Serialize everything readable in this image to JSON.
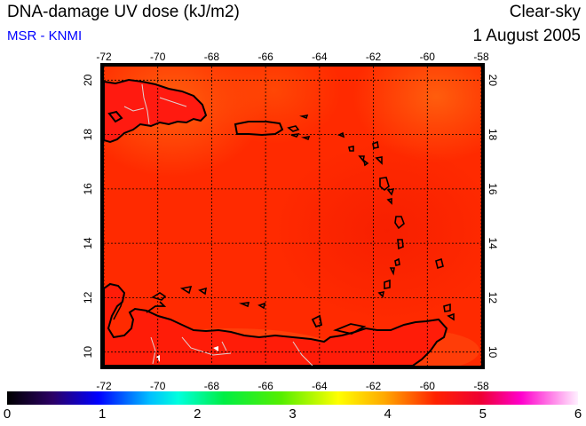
{
  "title": "DNA-damage UV dose (kJ/m2)",
  "credit": "MSR - KNMI",
  "condition": "Clear-sky",
  "date": "1 August 2005",
  "map": {
    "lon_range": [
      -72,
      -58
    ],
    "lat_range": [
      9.5,
      20.5
    ],
    "lon_ticks": [
      "-72",
      "-70",
      "-68",
      "-66",
      "-64",
      "-62",
      "-60",
      "-58"
    ],
    "lat_ticks": [
      "10",
      "12",
      "14",
      "16",
      "18",
      "20"
    ],
    "gridlines": true,
    "field_color": "#ff2a00",
    "coast_color": "#000000",
    "border_color": "#d0d0d0"
  },
  "colorbar": {
    "min": 0,
    "max": 6,
    "ticks": [
      "0",
      "1",
      "2",
      "3",
      "4",
      "5",
      "6"
    ]
  }
}
